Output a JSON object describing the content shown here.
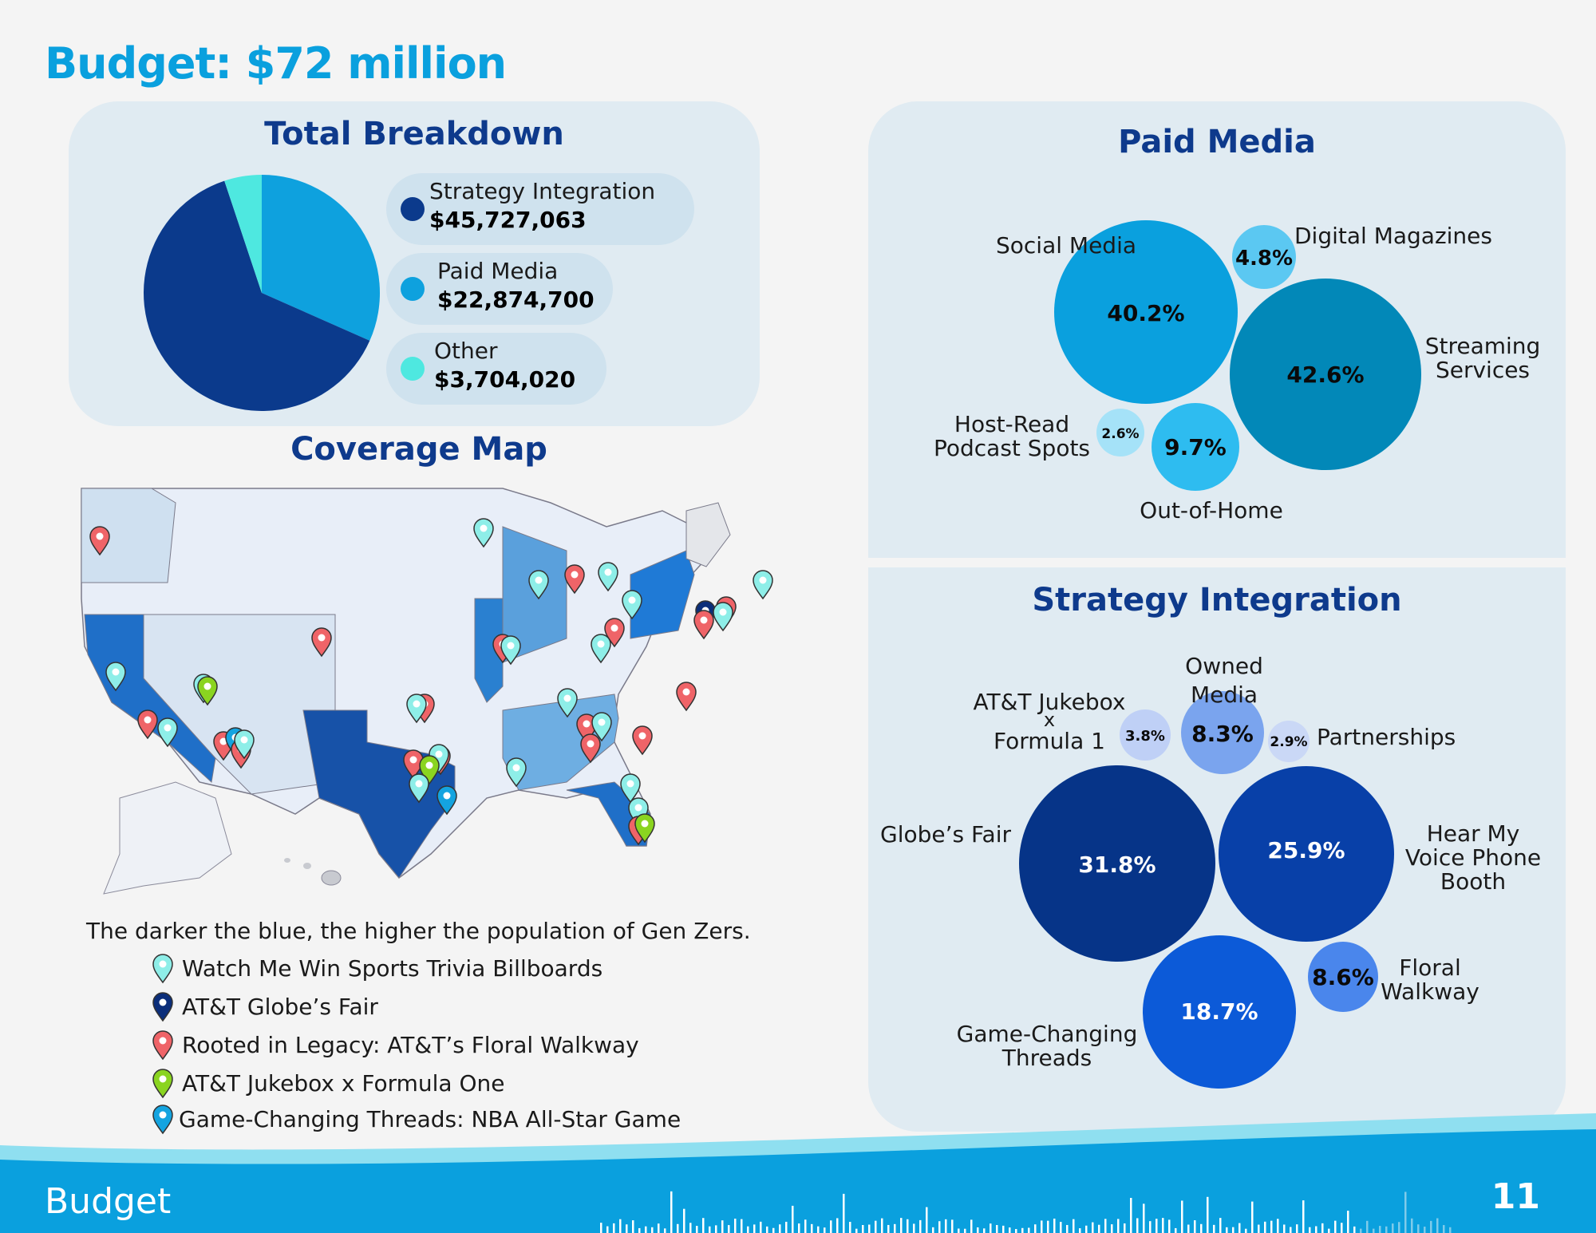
{
  "page_title": "Budget: $72 million",
  "total_breakdown": {
    "title": "Total Breakdown",
    "items": [
      {
        "label": "Strategy Integration",
        "value": "$45,727,063",
        "amount": 45727063,
        "color": "#0b3a8c"
      },
      {
        "label": "Paid Media",
        "value": "$22,874,700",
        "amount": 22874700,
        "color": "#0ea1de"
      },
      {
        "label": "Other",
        "value": "$3,704,020",
        "amount": 3704020,
        "color": "#4ee8e0"
      }
    ]
  },
  "paid_media": {
    "title": "Paid Media",
    "bubbles": [
      {
        "label": "Social Media",
        "pct": "40.2%",
        "value": 40.2,
        "color": "#0aa0de"
      },
      {
        "label": "Digital Magazines",
        "pct": "4.8%",
        "value": 4.8,
        "color": "#5bc8f2"
      },
      {
        "label": "Streaming Services",
        "pct": "42.6%",
        "value": 42.6,
        "color": "#0288b8"
      },
      {
        "label": "Host-Read Podcast Spots",
        "pct": "2.6%",
        "value": 2.6,
        "color": "#a5e2f8"
      },
      {
        "label": "Out-of-Home",
        "pct": "9.7%",
        "value": 9.7,
        "color": "#2ebcf0"
      }
    ]
  },
  "strategy_integration": {
    "title": "Strategy Integration",
    "bubbles": [
      {
        "label": "Owned Media",
        "pct": "8.3%",
        "value": 8.3,
        "color": "#7aa4ee"
      },
      {
        "label": "AT&T Jukebox x Formula 1",
        "pct": "3.8%",
        "value": 3.8,
        "color": "#bfd0f6"
      },
      {
        "label": "Partnerships",
        "pct": "2.9%",
        "value": 2.9,
        "color": "#cad8f6"
      },
      {
        "label": "Globe’s Fair",
        "pct": "31.8%",
        "value": 31.8,
        "color": "#063488"
      },
      {
        "label": "Hear My Voice Phone Booth",
        "pct": "25.9%",
        "value": 25.9,
        "color": "#0840a8"
      },
      {
        "label": "Game-Changing Threads",
        "pct": "18.7%",
        "value": 18.7,
        "color": "#0c5ad8"
      },
      {
        "label": "Floral Walkway",
        "pct": "8.6%",
        "value": 8.6,
        "color": "#4a86ec"
      }
    ]
  },
  "coverage_map": {
    "title": "Coverage Map",
    "caption": "The darker the blue, the higher the population of Gen Zers.",
    "legend": [
      {
        "label": "Watch Me Win Sports Trivia Billboards",
        "color": "#8eeee8"
      },
      {
        "label": "AT&T Globe’s Fair",
        "color": "#0b2e7a"
      },
      {
        "label": "Rooted in Legacy: AT&T’s Floral Walkway",
        "color": "#ef6468"
      },
      {
        "label": "AT&T Jukebox x Formula One",
        "color": "#8ad420"
      },
      {
        "label": "Game-Changing Threads: NBA All-Star Game",
        "color": "#14a4e0"
      }
    ]
  },
  "footer": {
    "section": "Budget",
    "page_number": "11"
  }
}
